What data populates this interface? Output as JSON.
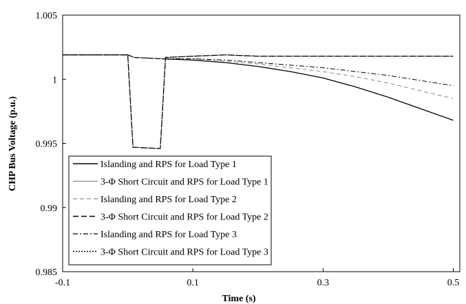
{
  "chart_data": {
    "type": "line",
    "title": "",
    "xlabel": "Time (s)",
    "ylabel": "CHP Bus Voltage (p.u.)",
    "xlim": [
      -0.1,
      0.51
    ],
    "ylim": [
      0.985,
      1.005
    ],
    "x_ticks": [
      -0.1,
      0.1,
      0.3,
      0.5
    ],
    "x_tick_labels": [
      "-0.1",
      "0.1",
      "0.3",
      "0.5"
    ],
    "y_ticks": [
      0.985,
      0.99,
      0.995,
      1.0,
      1.005
    ],
    "y_tick_labels": [
      "0.985",
      "0.99",
      "0.995",
      "1",
      "1.005"
    ],
    "grid": false,
    "legend_position": "bottom-left",
    "series": [
      {
        "name": "Islanding and RPS for Load Type 1",
        "style": "solid",
        "color": "#000000",
        "width": 1.3,
        "x": [
          -0.1,
          0.0,
          0.01,
          0.05,
          0.1,
          0.15,
          0.2,
          0.25,
          0.3,
          0.35,
          0.4,
          0.45,
          0.5
        ],
        "y": [
          1.0019,
          1.0019,
          1.0017,
          1.0016,
          1.0015,
          1.0013,
          1.001,
          1.0006,
          1.0001,
          0.9994,
          0.9986,
          0.9977,
          0.9968
        ]
      },
      {
        "name": "3-Φ Short Circuit and RPS for Load Type 1",
        "style": "solid",
        "color": "#888888",
        "width": 1.0,
        "x": [
          -0.1,
          0.0,
          0.008,
          0.05,
          0.058,
          0.1,
          0.15,
          0.2,
          0.3,
          0.4,
          0.5
        ],
        "y": [
          1.0019,
          1.0019,
          0.9947,
          0.9946,
          1.0017,
          1.0018,
          1.0019,
          1.0018,
          1.0018,
          1.0018,
          1.0018
        ]
      },
      {
        "name": "Islanding and RPS for Load Type 2",
        "style": "dashed-thin",
        "color": "#888888",
        "width": 1.0,
        "x": [
          -0.1,
          0.0,
          0.01,
          0.05,
          0.1,
          0.15,
          0.2,
          0.25,
          0.3,
          0.35,
          0.4,
          0.45,
          0.5
        ],
        "y": [
          1.0019,
          1.0019,
          1.0017,
          1.0016,
          1.0016,
          1.0014,
          1.0012,
          1.0009,
          1.0006,
          1.0002,
          0.9997,
          0.9991,
          0.9985
        ]
      },
      {
        "name": "3-Φ Short Circuit and RPS for Load Type 2",
        "style": "dashed",
        "color": "#000000",
        "width": 1.2,
        "x": [
          -0.1,
          0.0,
          0.008,
          0.05,
          0.058,
          0.1,
          0.15,
          0.2,
          0.3,
          0.4,
          0.5
        ],
        "y": [
          1.0019,
          1.0019,
          0.9947,
          0.9946,
          1.0017,
          1.0018,
          1.0019,
          1.0018,
          1.0018,
          1.0018,
          1.0018
        ]
      },
      {
        "name": "Islanding and RPS for Load Type 3",
        "style": "dashdot",
        "color": "#000000",
        "width": 1.0,
        "x": [
          -0.1,
          0.0,
          0.01,
          0.05,
          0.1,
          0.15,
          0.2,
          0.25,
          0.3,
          0.35,
          0.4,
          0.45,
          0.5
        ],
        "y": [
          1.0019,
          1.0019,
          1.0017,
          1.0016,
          1.0016,
          1.0015,
          1.0013,
          1.0011,
          1.0009,
          1.0006,
          1.0003,
          0.9999,
          0.9995
        ]
      },
      {
        "name": "3-Φ Short Circuit and RPS for Load Type 3",
        "style": "dotted",
        "color": "#000000",
        "width": 1.2,
        "x": [
          -0.1,
          0.0,
          0.008,
          0.05,
          0.058,
          0.1,
          0.15,
          0.2,
          0.3,
          0.4,
          0.5
        ],
        "y": [
          1.0019,
          1.0019,
          0.9947,
          0.9946,
          1.0017,
          1.0018,
          1.0019,
          1.0018,
          1.0018,
          1.0018,
          1.0018
        ]
      }
    ]
  }
}
